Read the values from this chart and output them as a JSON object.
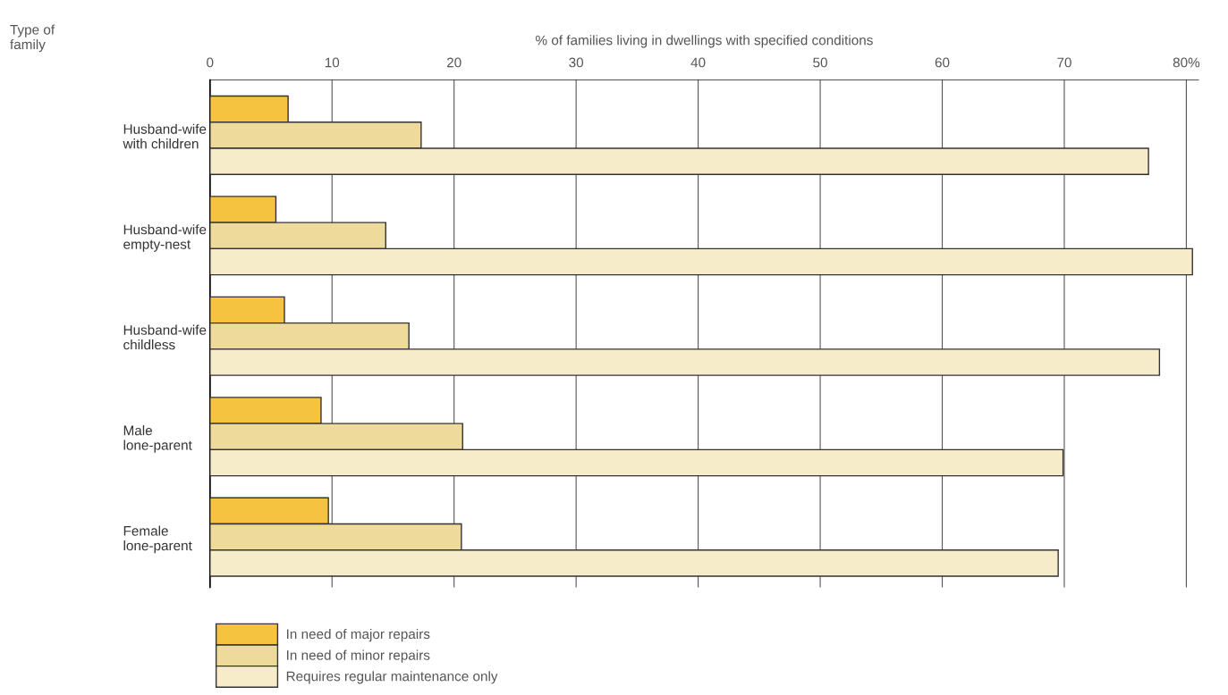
{
  "chart_data": {
    "type": "bar",
    "orientation": "horizontal",
    "xlabel": "% of families living in dwellings with specified conditions",
    "annotations": [
      "Type of\nfamily"
    ],
    "categories": [
      "Husband-wife\nwith children",
      "Husband-wife\nempty-nest",
      "Husband-wife\nchildless",
      "Male\nlone-parent",
      "Female\nlone-parent"
    ],
    "series": [
      {
        "name": "In need of major repairs",
        "color": "#f6c340",
        "values": [
          6.4,
          5.4,
          6.1,
          9.1,
          9.7
        ]
      },
      {
        "name": "In need of minor repairs",
        "color": "#eedb9c",
        "values": [
          17.3,
          14.4,
          16.3,
          20.7,
          20.6
        ]
      },
      {
        "name": "Requires regular maintenance only",
        "color": "#f7ecca",
        "values": [
          76.9,
          80.5,
          77.8,
          69.9,
          69.5
        ]
      }
    ],
    "xlim": [
      0,
      81
    ],
    "xticks": [
      0,
      10,
      20,
      30,
      40,
      50,
      60,
      70,
      {
        "value": 80,
        "label": "80%"
      }
    ],
    "grid": "x",
    "legend": "bottom left"
  }
}
